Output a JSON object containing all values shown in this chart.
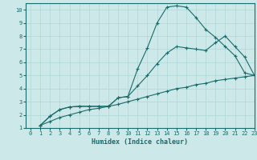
{
  "xlabel": "Humidex (Indice chaleur)",
  "ylabel": "",
  "xlim": [
    -0.5,
    23
  ],
  "ylim": [
    1,
    10.5
  ],
  "xticks": [
    0,
    1,
    2,
    3,
    4,
    5,
    6,
    7,
    8,
    9,
    10,
    11,
    12,
    13,
    14,
    15,
    16,
    17,
    18,
    19,
    20,
    21,
    22,
    23
  ],
  "yticks": [
    1,
    2,
    3,
    4,
    5,
    6,
    7,
    8,
    9,
    10
  ],
  "bg_color": "#cce8e8",
  "grid_color": "#b0d8d8",
  "line_color": "#1a6b6b",
  "line1_x": [
    1,
    2,
    3,
    4,
    5,
    6,
    7,
    8,
    9,
    10,
    11,
    12,
    13,
    14,
    15,
    16,
    17,
    18,
    19,
    20,
    21,
    22,
    23
  ],
  "line1_y": [
    1.2,
    1.9,
    2.4,
    2.6,
    2.65,
    2.65,
    2.65,
    2.65,
    3.3,
    3.4,
    5.5,
    7.1,
    9.0,
    10.2,
    10.3,
    10.2,
    9.4,
    8.5,
    7.9,
    7.2,
    6.5,
    5.2,
    5.0
  ],
  "line2_x": [
    1,
    2,
    3,
    4,
    5,
    6,
    7,
    8,
    9,
    10,
    11,
    12,
    13,
    14,
    15,
    16,
    17,
    18,
    19,
    20,
    21,
    22,
    23
  ],
  "line2_y": [
    1.2,
    1.9,
    2.4,
    2.6,
    2.65,
    2.65,
    2.65,
    2.65,
    3.3,
    3.4,
    4.2,
    5.0,
    5.9,
    6.7,
    7.2,
    7.1,
    7.0,
    6.9,
    7.5,
    8.0,
    7.2,
    6.4,
    5.0
  ],
  "line3_x": [
    1,
    2,
    3,
    4,
    5,
    6,
    7,
    8,
    9,
    10,
    11,
    12,
    13,
    14,
    15,
    16,
    17,
    18,
    19,
    20,
    21,
    22,
    23
  ],
  "line3_y": [
    1.2,
    1.5,
    1.8,
    2.0,
    2.2,
    2.4,
    2.5,
    2.65,
    2.8,
    3.0,
    3.2,
    3.4,
    3.6,
    3.8,
    4.0,
    4.1,
    4.3,
    4.4,
    4.6,
    4.7,
    4.8,
    4.9,
    5.0
  ]
}
